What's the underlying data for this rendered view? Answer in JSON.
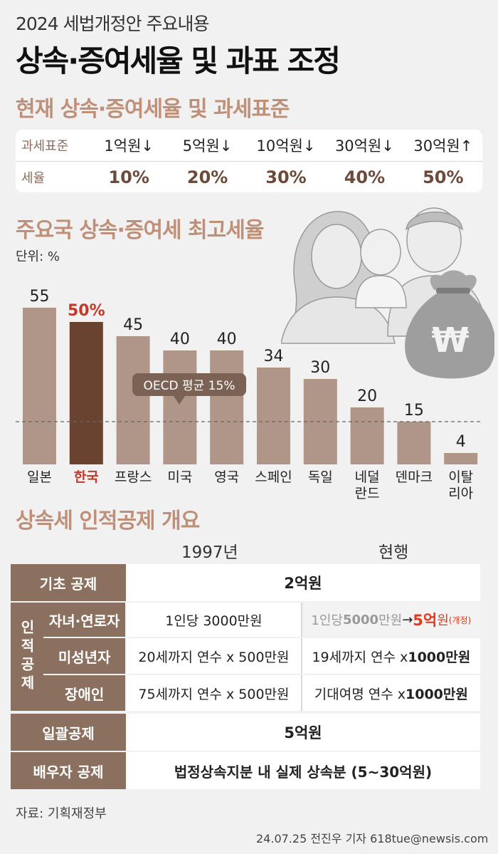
{
  "header": {
    "kicker": "2024 세법개정안 주요내용",
    "title": "상속·증여세율 및 과표 조정"
  },
  "rates_section": {
    "title": "현재 상속·증여세율 및 과세표준",
    "row_labels": [
      "과세표준",
      "세율"
    ],
    "brackets": [
      "1억원↓",
      "5억원↓",
      "10억원↓",
      "30억원↓",
      "30억원↑"
    ],
    "rates": [
      "10%",
      "20%",
      "30%",
      "40%",
      "50%"
    ]
  },
  "top_rate_section": {
    "title": "주요국 상속·증여세 최고세율",
    "unit": "단위: %"
  },
  "chart_data": {
    "type": "bar",
    "title": "주요국 상속·증여세 최고세율",
    "unit": "단위: %",
    "categories": [
      "일본",
      "한국",
      "프랑스",
      "미국",
      "영국",
      "스페인",
      "독일",
      "네덜란드",
      "덴마크",
      "이탈리아"
    ],
    "values": [
      55,
      50,
      45,
      40,
      40,
      34,
      30,
      20,
      15,
      4
    ],
    "value_labels": [
      "55",
      "50%",
      "45",
      "40",
      "40",
      "34",
      "30",
      "20",
      "15",
      "4"
    ],
    "highlight": "한국",
    "reference_line": {
      "label": "OECD 평균 15%",
      "value": 15
    },
    "colors": {
      "bar": "#b09689",
      "highlight": "#6a4330",
      "highlight_text": "#c0392b",
      "label_box": "#7b6254"
    }
  },
  "deduction_section": {
    "title": "상속세 인적공제 개요",
    "col_1997": "1997년",
    "col_current": "현행",
    "rows": {
      "basic": {
        "label": "기초 공제",
        "value": "2억원"
      },
      "group_label": "인적공제",
      "children": {
        "label": "자녀·연로자",
        "v1997": "1인당 3000만원",
        "cur_prefix": "1인당 ",
        "cur_old": "5000",
        "cur_old_unit": "만원",
        "cur_arrow": " → ",
        "cur_new": "5억",
        "cur_new_unit": "원",
        "cur_note": "(개정)"
      },
      "minors": {
        "label": "미성년자",
        "v1997": "20세까지 연수 x 500만원",
        "cur_text": "19세까지 연수 x ",
        "cur_bold": "1000만원"
      },
      "disabled": {
        "label": "장애인",
        "v1997": "75세까지 연수 x 500만원",
        "cur_text": "기대여명 연수 x ",
        "cur_bold": "1000만원"
      },
      "lump": {
        "label": "일괄공제",
        "value": "5억원"
      },
      "spouse": {
        "label": "배우자 공제",
        "value": "법정상속지분 내 실제 상속분 (5~30억원)"
      }
    }
  },
  "footer": {
    "source": "자료: 기획재정부",
    "credit": "24.07.25 전진우 기자 618tue@newsis.com"
  }
}
